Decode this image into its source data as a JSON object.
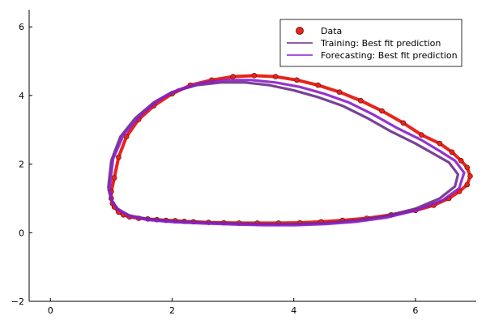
{
  "chart_data": {
    "type": "scatter",
    "title": "",
    "xlabel": "",
    "ylabel": "",
    "xlim": [
      -0.35,
      7.0
    ],
    "ylim": [
      -2.0,
      6.5
    ],
    "xticks": [
      0,
      2,
      4,
      6
    ],
    "yticks": [
      -2,
      0,
      2,
      4,
      6
    ],
    "xtick_labels": [
      "0",
      "2",
      "4",
      "6"
    ],
    "ytick_labels": [
      "−2",
      "0",
      "2",
      "4",
      "6"
    ],
    "grid": false,
    "legend_position": "top-right",
    "series": [
      {
        "name": "Data",
        "kind": "scatter",
        "color": "#e8241c",
        "x": [
          1.0,
          1.02,
          1.05,
          1.12,
          1.2,
          1.3,
          1.45,
          1.6,
          1.75,
          1.9,
          2.05,
          2.2,
          2.35,
          2.6,
          2.85,
          3.1,
          3.4,
          3.75,
          4.1,
          4.45,
          4.8,
          5.2,
          5.6,
          6.0,
          6.3,
          6.55,
          6.72,
          6.85,
          6.9,
          6.85,
          6.75,
          6.6,
          6.4,
          6.1,
          5.8,
          5.45,
          5.1,
          4.75,
          4.4,
          4.05,
          3.7,
          3.35,
          3.0,
          2.65,
          2.3,
          2.0,
          1.7,
          1.45,
          1.25,
          1.12,
          1.05,
          1.0
        ],
        "y": [
          1.0,
          0.85,
          0.75,
          0.6,
          0.52,
          0.46,
          0.42,
          0.4,
          0.38,
          0.36,
          0.35,
          0.33,
          0.32,
          0.3,
          0.29,
          0.28,
          0.28,
          0.28,
          0.29,
          0.32,
          0.36,
          0.42,
          0.52,
          0.65,
          0.8,
          1.0,
          1.2,
          1.4,
          1.65,
          1.9,
          2.1,
          2.35,
          2.6,
          2.85,
          3.2,
          3.55,
          3.85,
          4.1,
          4.3,
          4.45,
          4.55,
          4.58,
          4.55,
          4.45,
          4.3,
          4.05,
          3.7,
          3.3,
          2.8,
          2.2,
          1.6,
          1.2
        ]
      },
      {
        "name": "Training: Best fit prediction",
        "kind": "line",
        "color": "#6a2c8a",
        "x": [
          0.95,
          1.0,
          1.1,
          1.3,
          1.6,
          2.0,
          2.5,
          3.0,
          3.5,
          4.0,
          4.5,
          5.0,
          5.5,
          6.0,
          6.4,
          6.65,
          6.7,
          6.55,
          6.3,
          6.0,
          5.6,
          5.2,
          4.8,
          4.4,
          4.0,
          3.6,
          3.2,
          2.8,
          2.4,
          2.0,
          1.7,
          1.4,
          1.15,
          1.0,
          0.95
        ],
        "y": [
          1.3,
          0.95,
          0.7,
          0.5,
          0.4,
          0.34,
          0.3,
          0.27,
          0.25,
          0.25,
          0.28,
          0.35,
          0.48,
          0.7,
          1.0,
          1.35,
          1.7,
          2.05,
          2.3,
          2.6,
          2.95,
          3.35,
          3.7,
          3.95,
          4.15,
          4.3,
          4.38,
          4.38,
          4.3,
          4.1,
          3.8,
          3.35,
          2.8,
          2.1,
          1.3
        ]
      },
      {
        "name": "Forecasting: Best fit prediction",
        "kind": "line",
        "color": "#8a1ec8",
        "x": [
          0.97,
          1.02,
          1.12,
          1.32,
          1.62,
          2.02,
          2.52,
          3.02,
          3.52,
          4.02,
          4.52,
          5.02,
          5.52,
          6.02,
          6.45,
          6.72,
          6.8,
          6.65,
          6.4,
          6.1,
          5.7,
          5.3,
          4.9,
          4.5,
          4.1,
          3.7,
          3.3,
          2.9,
          2.5,
          2.1,
          1.78,
          1.48,
          1.2,
          1.03,
          0.97
        ],
        "y": [
          1.25,
          0.9,
          0.66,
          0.47,
          0.37,
          0.31,
          0.27,
          0.24,
          0.22,
          0.22,
          0.25,
          0.32,
          0.44,
          0.66,
          0.95,
          1.3,
          1.75,
          2.1,
          2.38,
          2.7,
          3.05,
          3.45,
          3.8,
          4.05,
          4.25,
          4.38,
          4.45,
          4.45,
          4.37,
          4.17,
          3.87,
          3.42,
          2.85,
          2.15,
          1.25
        ]
      }
    ]
  }
}
